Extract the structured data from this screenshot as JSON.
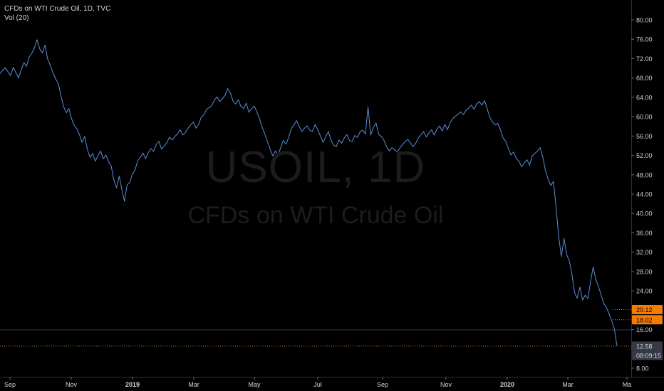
{
  "header": {
    "symbol_line": "CFDs on WTI Crude Oil, 1D, TVC",
    "indicator": "Vol (20)"
  },
  "watermark": {
    "ticker": "USOIL, 1D",
    "name": "CFDs on WTI Crude Oil"
  },
  "colors": {
    "background": "#000000",
    "line": "#5b8fd4",
    "axis_text": "#d1d4dc",
    "price_tag_orange": "#f57c00",
    "price_tag_gray": "#363a45",
    "dotted_line": "#b8762a",
    "horizontal_line": "#1f3a5c"
  },
  "chart_data": {
    "type": "line",
    "title": "CFDs on WTI Crude Oil, 1D, TVC",
    "ylim": [
      8,
      82
    ],
    "y_ticks": [
      "8.00",
      "12.00",
      "16.00",
      "20.00",
      "24.00",
      "28.00",
      "32.00",
      "36.00",
      "40.00",
      "44.00",
      "48.00",
      "52.00",
      "56.00",
      "60.00",
      "64.00",
      "68.00",
      "72.00",
      "76.00",
      "80.00"
    ],
    "x_ticks": [
      "Sep",
      "Nov",
      "2019",
      "Mar",
      "May",
      "Jul",
      "Sep",
      "Nov",
      "2020",
      "Mar",
      "Ma"
    ],
    "x_tick_bold": [
      "2019",
      "2020"
    ],
    "grid": false,
    "series": [
      {
        "values": [
          68.9,
          69.6,
          70.1,
          69.3,
          68.5,
          70.2,
          69.1,
          68.0,
          69.7,
          71.2,
          70.4,
          72.3,
          73.1,
          74.2,
          75.9,
          74.0,
          73.2,
          74.8,
          71.9,
          70.6,
          69.1,
          67.8,
          66.9,
          64.4,
          62.1,
          60.8,
          61.7,
          59.6,
          58.2,
          57.5,
          56.3,
          54.7,
          55.9,
          53.2,
          51.6,
          52.4,
          50.8,
          51.9,
          52.9,
          51.3,
          52.1,
          50.7,
          49.8,
          46.9,
          45.3,
          47.7,
          45.0,
          42.5,
          45.9,
          46.4,
          48.1,
          49.0,
          50.9,
          51.6,
          52.5,
          51.3,
          52.6,
          53.4,
          52.8,
          54.3,
          54.9,
          53.3,
          53.9,
          54.6,
          55.8,
          55.2,
          55.9,
          56.4,
          57.3,
          56.2,
          56.7,
          57.6,
          58.3,
          58.9,
          57.6,
          58.4,
          59.9,
          60.4,
          61.5,
          61.9,
          62.3,
          63.5,
          64.1,
          63.1,
          63.7,
          64.4,
          65.8,
          64.9,
          63.2,
          62.6,
          63.5,
          62.1,
          61.7,
          62.8,
          60.9,
          61.6,
          62.2,
          61.0,
          59.6,
          57.8,
          56.4,
          54.8,
          53.3,
          51.9,
          52.9,
          52.1,
          53.6,
          55.1,
          54.3,
          55.7,
          57.5,
          58.3,
          59.2,
          58.0,
          56.9,
          57.6,
          58.1,
          57.2,
          56.9,
          58.4,
          57.3,
          56.0,
          54.7,
          55.8,
          56.9,
          55.2,
          54.1,
          53.8,
          55.2,
          54.5,
          55.6,
          56.3,
          55.0,
          54.9,
          56.1,
          55.7,
          56.9,
          57.2,
          56.4,
          62.0,
          56.2,
          57.8,
          58.7,
          56.4,
          55.9,
          55.1,
          53.8,
          52.9,
          53.6,
          53.2,
          52.7,
          53.5,
          54.2,
          54.9,
          55.3,
          54.6,
          53.8,
          54.5,
          55.6,
          56.3,
          56.9,
          55.8,
          56.6,
          57.3,
          56.2,
          57.4,
          58.1,
          57.0,
          58.4,
          57.3,
          58.8,
          59.6,
          60.1,
          60.5,
          61.0,
          60.4,
          61.3,
          61.8,
          62.4,
          61.5,
          62.6,
          63.1,
          62.4,
          63.3,
          61.6,
          59.8,
          58.9,
          58.3,
          58.6,
          57.3,
          55.6,
          54.9,
          53.4,
          52.1,
          52.7,
          51.3,
          50.8,
          49.6,
          50.4,
          51.1,
          50.0,
          51.9,
          52.4,
          52.9,
          53.6,
          51.6,
          48.9,
          47.1,
          45.8,
          46.6,
          41.3,
          35.2,
          31.1,
          34.8,
          31.5,
          30.2,
          27.4,
          23.6,
          22.5,
          24.8,
          22.1,
          23.1,
          22.4,
          25.8,
          28.9,
          26.4,
          24.9,
          23.2,
          21.4,
          20.6,
          19.3,
          17.8,
          16.1,
          12.58
        ]
      }
    ],
    "last_price": "12.58",
    "countdown": "08:09:15",
    "price_labels_orange": [
      "20.12",
      "18.02"
    ]
  }
}
